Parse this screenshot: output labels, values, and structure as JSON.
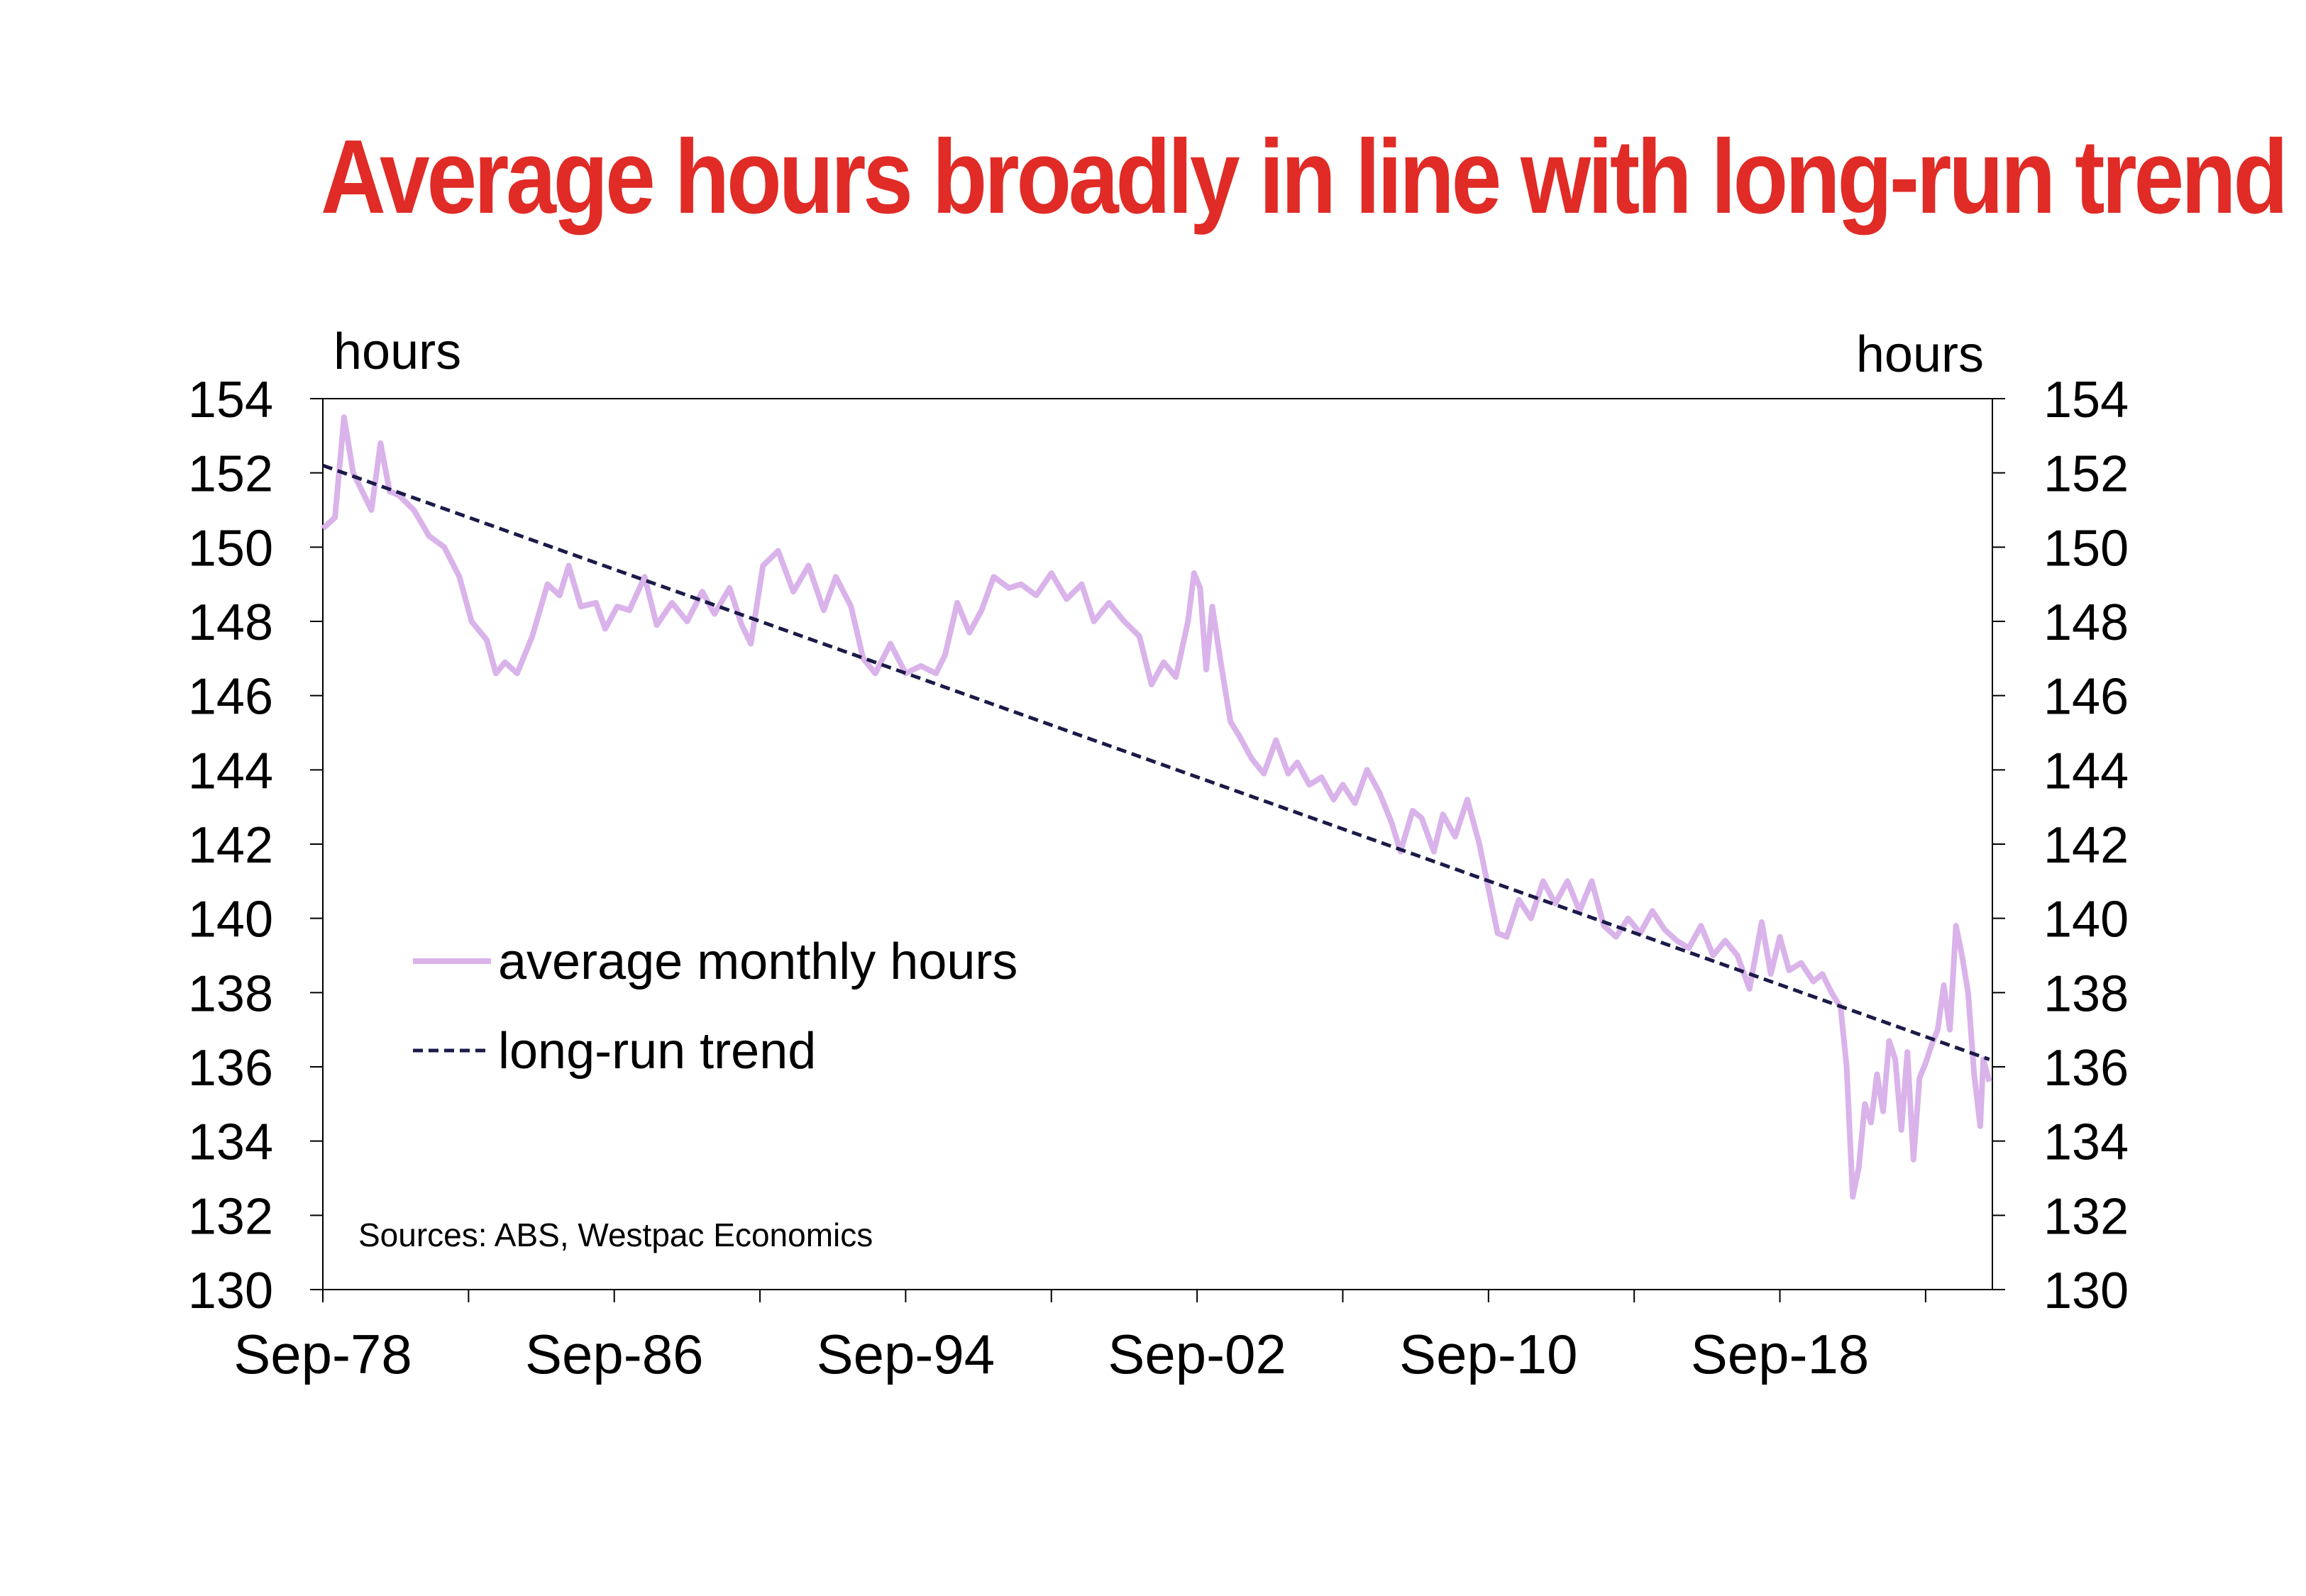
{
  "chart_data": {
    "type": "line",
    "title": "Average hours broadly in line with long-run trend",
    "ylabel_left": "hours",
    "ylabel_right": "hours",
    "ylim": [
      130,
      154
    ],
    "yticks": [
      "130",
      "132",
      "134",
      "136",
      "138",
      "140",
      "142",
      "144",
      "146",
      "148",
      "150",
      "152",
      "154"
    ],
    "x_range": [
      "1978-09",
      "2024-06"
    ],
    "xtick_labels": [
      "Sep-78",
      "Sep-86",
      "Sep-94",
      "Sep-02",
      "Sep-10",
      "Sep-18"
    ],
    "xtick_minor_years": [
      1982,
      1990,
      1998,
      2006,
      2014,
      2022
    ],
    "grid": false,
    "legend_placement": "lower-left inside plot",
    "source": "Sources: ABS, Westpac Economics",
    "colors": {
      "title": "#e02b26",
      "actual": "#d9b3ea",
      "trend": "#1c1a48"
    },
    "series": [
      {
        "name": "average monthly hours",
        "style": "solid",
        "points": [
          [
            "1978-09",
            150.5
          ],
          [
            "1979-01",
            150.8
          ],
          [
            "1979-04",
            153.5
          ],
          [
            "1979-07",
            152.0
          ],
          [
            "1979-10",
            151.5
          ],
          [
            "1980-01",
            151.0
          ],
          [
            "1980-04",
            152.8
          ],
          [
            "1980-07",
            151.5
          ],
          [
            "1980-10",
            151.4
          ],
          [
            "1981-03",
            151.0
          ],
          [
            "1981-08",
            150.3
          ],
          [
            "1982-01",
            150.0
          ],
          [
            "1982-06",
            149.2
          ],
          [
            "1982-10",
            148.0
          ],
          [
            "1983-03",
            147.5
          ],
          [
            "1983-06",
            146.6
          ],
          [
            "1983-09",
            146.9
          ],
          [
            "1984-01",
            146.6
          ],
          [
            "1984-06",
            147.6
          ],
          [
            "1984-11",
            149.0
          ],
          [
            "1985-03",
            148.7
          ],
          [
            "1985-06",
            149.5
          ],
          [
            "1985-10",
            148.4
          ],
          [
            "1986-03",
            148.5
          ],
          [
            "1986-06",
            147.8
          ],
          [
            "1986-10",
            148.4
          ],
          [
            "1987-02",
            148.3
          ],
          [
            "1987-07",
            149.2
          ],
          [
            "1987-11",
            147.9
          ],
          [
            "1988-04",
            148.5
          ],
          [
            "1988-09",
            148.0
          ],
          [
            "1989-02",
            148.8
          ],
          [
            "1989-06",
            148.2
          ],
          [
            "1989-11",
            148.9
          ],
          [
            "1990-03",
            147.9
          ],
          [
            "1990-06",
            147.4
          ],
          [
            "1990-10",
            149.5
          ],
          [
            "1991-03",
            149.9
          ],
          [
            "1991-08",
            148.8
          ],
          [
            "1992-01",
            149.5
          ],
          [
            "1992-06",
            148.3
          ],
          [
            "1992-10",
            149.2
          ],
          [
            "1993-03",
            148.4
          ],
          [
            "1993-07",
            147.0
          ],
          [
            "1993-11",
            146.6
          ],
          [
            "1994-04",
            147.4
          ],
          [
            "1994-09",
            146.6
          ],
          [
            "1995-02",
            146.8
          ],
          [
            "1995-07",
            146.6
          ],
          [
            "1995-10",
            147.1
          ],
          [
            "1996-02",
            148.5
          ],
          [
            "1996-06",
            147.7
          ],
          [
            "1996-10",
            148.3
          ],
          [
            "1997-02",
            149.2
          ],
          [
            "1997-07",
            148.9
          ],
          [
            "1997-11",
            149.0
          ],
          [
            "1998-04",
            148.7
          ],
          [
            "1998-09",
            149.3
          ],
          [
            "1999-02",
            148.6
          ],
          [
            "1999-07",
            149.0
          ],
          [
            "1999-11",
            148.0
          ],
          [
            "2000-04",
            148.5
          ],
          [
            "2000-09",
            148.0
          ],
          [
            "2001-02",
            147.6
          ],
          [
            "2001-06",
            146.3
          ],
          [
            "2001-10",
            146.9
          ],
          [
            "2002-02",
            146.5
          ],
          [
            "2002-06",
            148.0
          ],
          [
            "2002-08",
            149.3
          ],
          [
            "2002-10",
            148.9
          ],
          [
            "2002-12",
            146.7
          ],
          [
            "2003-02",
            148.4
          ],
          [
            "2003-05",
            146.8
          ],
          [
            "2003-08",
            145.3
          ],
          [
            "2003-11",
            144.9
          ],
          [
            "2004-03",
            144.3
          ],
          [
            "2004-07",
            143.9
          ],
          [
            "2004-11",
            144.8
          ],
          [
            "2005-03",
            143.9
          ],
          [
            "2005-06",
            144.2
          ],
          [
            "2005-10",
            143.6
          ],
          [
            "2006-02",
            143.8
          ],
          [
            "2006-06",
            143.2
          ],
          [
            "2006-09",
            143.6
          ],
          [
            "2007-01",
            143.1
          ],
          [
            "2007-05",
            144.0
          ],
          [
            "2007-09",
            143.4
          ],
          [
            "2008-01",
            142.6
          ],
          [
            "2008-04",
            141.8
          ],
          [
            "2008-08",
            142.9
          ],
          [
            "2008-11",
            142.7
          ],
          [
            "2009-03",
            141.8
          ],
          [
            "2009-06",
            142.8
          ],
          [
            "2009-10",
            142.2
          ],
          [
            "2010-02",
            143.2
          ],
          [
            "2010-06",
            142.0
          ],
          [
            "2010-09",
            140.8
          ],
          [
            "2010-12",
            139.6
          ],
          [
            "2011-03",
            139.5
          ],
          [
            "2011-07",
            140.5
          ],
          [
            "2011-11",
            140.0
          ],
          [
            "2012-03",
            141.0
          ],
          [
            "2012-07",
            140.4
          ],
          [
            "2012-11",
            141.0
          ],
          [
            "2013-03",
            140.2
          ],
          [
            "2013-07",
            141.0
          ],
          [
            "2013-11",
            139.8
          ],
          [
            "2014-03",
            139.5
          ],
          [
            "2014-07",
            140.0
          ],
          [
            "2014-11",
            139.6
          ],
          [
            "2015-03",
            140.2
          ],
          [
            "2015-07",
            139.7
          ],
          [
            "2015-11",
            139.4
          ],
          [
            "2016-03",
            139.2
          ],
          [
            "2016-07",
            139.8
          ],
          [
            "2016-11",
            139.0
          ],
          [
            "2017-03",
            139.4
          ],
          [
            "2017-07",
            139.0
          ],
          [
            "2017-11",
            138.1
          ],
          [
            "2018-03",
            139.9
          ],
          [
            "2018-06",
            138.5
          ],
          [
            "2018-09",
            139.5
          ],
          [
            "2018-12",
            138.6
          ],
          [
            "2019-04",
            138.8
          ],
          [
            "2019-08",
            138.3
          ],
          [
            "2019-11",
            138.5
          ],
          [
            "2020-02",
            138.0
          ],
          [
            "2020-05",
            137.6
          ],
          [
            "2020-07",
            136.0
          ],
          [
            "2020-09",
            132.5
          ],
          [
            "2020-11",
            133.3
          ],
          [
            "2021-01",
            135.0
          ],
          [
            "2021-03",
            134.5
          ],
          [
            "2021-05",
            135.8
          ],
          [
            "2021-07",
            134.8
          ],
          [
            "2021-09",
            136.7
          ],
          [
            "2021-11",
            136.2
          ],
          [
            "2022-01",
            134.3
          ],
          [
            "2022-03",
            136.4
          ],
          [
            "2022-05",
            133.5
          ],
          [
            "2022-07",
            135.7
          ],
          [
            "2022-09",
            136.1
          ],
          [
            "2022-11",
            136.6
          ],
          [
            "2023-01",
            137.0
          ],
          [
            "2023-03",
            138.2
          ],
          [
            "2023-05",
            137.0
          ],
          [
            "2023-07",
            139.8
          ],
          [
            "2023-09",
            139.0
          ],
          [
            "2023-11",
            138.0
          ],
          [
            "2024-01",
            135.8
          ],
          [
            "2024-03",
            134.4
          ],
          [
            "2024-04",
            136.2
          ],
          [
            "2024-06",
            135.6
          ]
        ]
      },
      {
        "name": "long-run trend",
        "style": "dashed",
        "points": [
          [
            "1978-09",
            152.2
          ],
          [
            "2024-06",
            136.2
          ]
        ]
      }
    ]
  }
}
